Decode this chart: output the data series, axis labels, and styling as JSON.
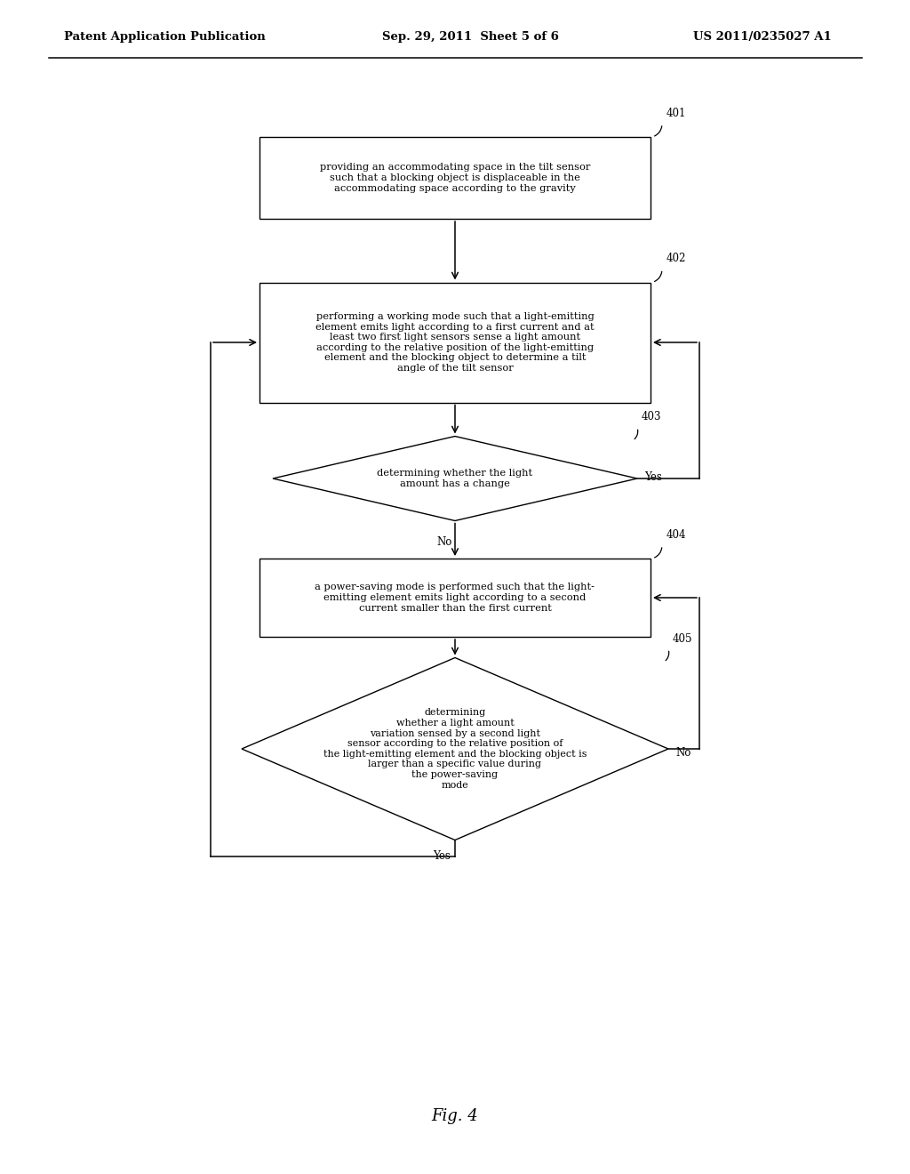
{
  "title": "Fig. 4",
  "header_left": "Patent Application Publication",
  "header_center": "Sep. 29, 2011  Sheet 5 of 6",
  "header_right": "US 2011/0235027 A1",
  "bg_color": "#ffffff",
  "box401_label": "providing an accommodating space in the tilt sensor\nsuch that a blocking object is displaceable in the\naccommodating space according to the gravity",
  "box402_label": "performing a working mode such that a light-emitting\nelement emits light according to a first current and at\nleast two first light sensors sense a light amount\naccording to the relative position of the light-emitting\nelement and the blocking object to determine a tilt\nangle of the tilt sensor",
  "dia403_label": "determining whether the light\namount has a change",
  "box404_label": "a power-saving mode is performed such that the light-\nemitting element emits light according to a second\ncurrent smaller than the first current",
  "dia405_label": "determining\nwhether a light amount\nvariation sensed by a second light\nsensor according to the relative position of\nthe light-emitting element and the blocking object is\nlarger than a specific value during\nthe power-saving\nmode"
}
